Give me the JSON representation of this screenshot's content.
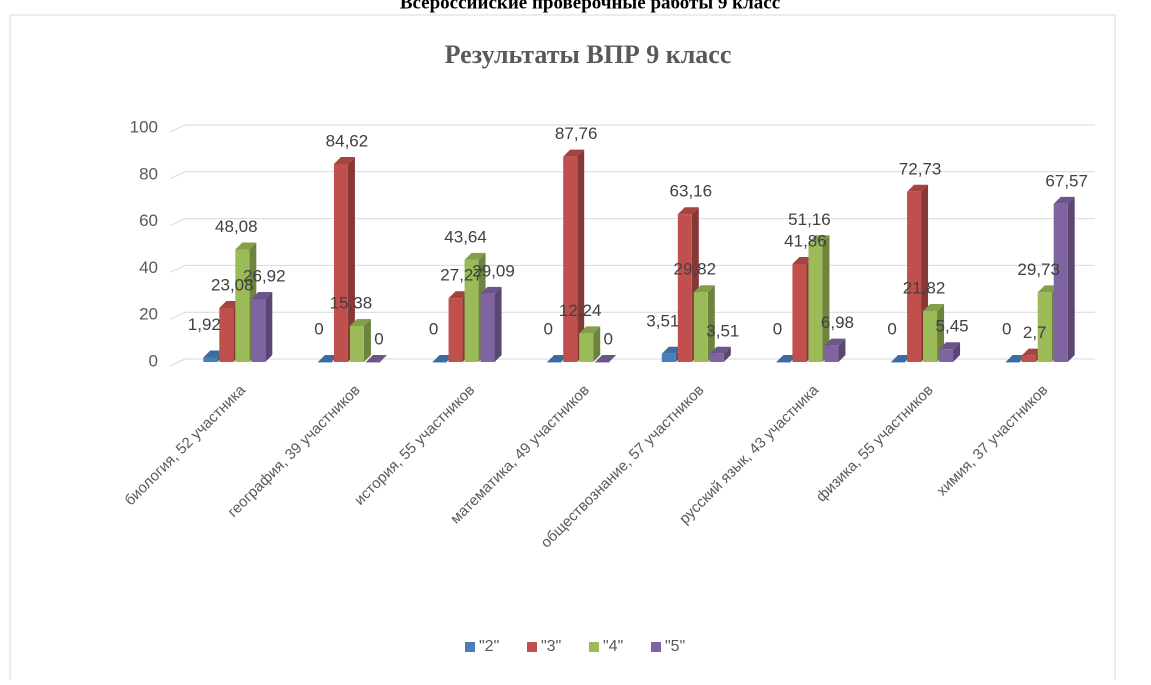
{
  "heading": "Всероссийские проверочные работы 9 класс",
  "chart_data": {
    "type": "bar3d",
    "title": "Результаты  ВПР 9 класс",
    "categories": [
      "биология, 52 участника",
      "география, 39 участников",
      "история, 55 участников",
      "математика, 49 участников",
      "обществознание, 57 участников",
      "русский язык, 43 участника",
      "физика, 55 участников",
      "химия, 37 участников"
    ],
    "series": [
      {
        "name": "\"2\"",
        "color": "#4a7ebb",
        "values": [
          1.92,
          0,
          0,
          0,
          3.51,
          0,
          0,
          0
        ],
        "value_labels": [
          "1,92",
          "0",
          "0",
          "0",
          "3,51",
          "0",
          "0",
          "0"
        ]
      },
      {
        "name": "\"3\"",
        "color": "#c0504d",
        "values": [
          23.08,
          84.62,
          27.27,
          87.76,
          63.16,
          41.86,
          72.73,
          2.7
        ],
        "value_labels": [
          "23,08",
          "84,62",
          "27,27",
          "87,76",
          "63,16",
          "41,86",
          "72,73",
          "2,7"
        ]
      },
      {
        "name": "\"4\"",
        "color": "#9bbb59",
        "values": [
          48.08,
          15.38,
          43.64,
          12.24,
          29.82,
          51.16,
          21.82,
          29.73
        ],
        "value_labels": [
          "48,08",
          "15,38",
          "43,64",
          "12,24",
          "29,82",
          "51,16",
          "21,82",
          "29,73"
        ]
      },
      {
        "name": "\"5\"",
        "color": "#8064a2",
        "values": [
          26.92,
          0,
          29.09,
          0,
          3.51,
          6.98,
          5.45,
          67.57
        ],
        "value_labels": [
          "26,92",
          "0",
          "29,09",
          "0",
          "3,51",
          "6,98",
          "5,45",
          "67,57"
        ]
      }
    ],
    "ylim": [
      0,
      100
    ],
    "yticks": [
      0,
      20,
      40,
      60,
      80,
      100
    ],
    "grid": true,
    "legend": "bottom"
  }
}
